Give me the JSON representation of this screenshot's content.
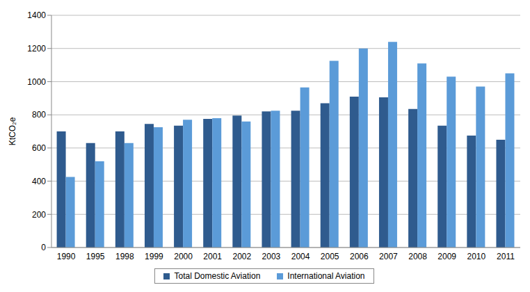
{
  "chart_data": {
    "type": "bar",
    "y_label": "KtCO₂e",
    "categories": [
      "1990",
      "1995",
      "1998",
      "1999",
      "2000",
      "2001",
      "2002",
      "2003",
      "2004",
      "2005",
      "2006",
      "2007",
      "2008",
      "2009",
      "2010",
      "2011"
    ],
    "series": [
      {
        "name": "Total Domestic Aviation",
        "color": "#2f5b8e",
        "values": [
          700,
          630,
          700,
          745,
          735,
          775,
          795,
          820,
          825,
          870,
          910,
          905,
          835,
          735,
          675,
          650
        ]
      },
      {
        "name": "International Aviation",
        "color": "#5b9bd8",
        "values": [
          425,
          520,
          630,
          725,
          770,
          780,
          760,
          825,
          965,
          1125,
          1200,
          1240,
          1110,
          1030,
          970,
          1050
        ]
      }
    ],
    "ylim": [
      0,
      1400
    ],
    "yticks": [
      0,
      200,
      400,
      600,
      800,
      1000,
      1200,
      1400
    ],
    "grid": true,
    "legend": "bottom"
  }
}
